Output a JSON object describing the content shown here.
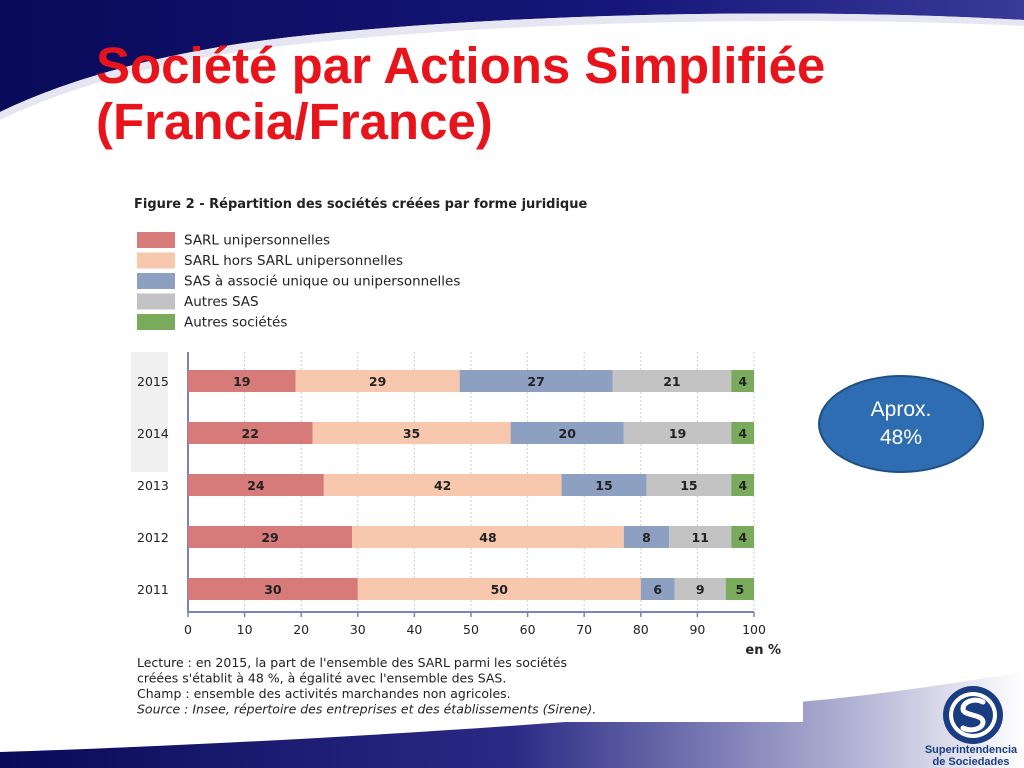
{
  "slide": {
    "title_line1": "Société par Actions Simplifiée",
    "title_line2": "(Francia/France)",
    "callout_line1": "Aprox.",
    "callout_line2": "48%",
    "logo_line1": "Superintendencia",
    "logo_line2": "de Sociedades",
    "colors": {
      "title": "#e8141b",
      "navy": "#0a0a5a",
      "callout": "#2e6db2"
    }
  },
  "chart_data": {
    "type": "bar",
    "orientation": "horizontal",
    "stacked": true,
    "title": "Figure 2 - Répartition des sociétés créées par forme juridique",
    "categories": [
      "2015",
      "2014",
      "2013",
      "2012",
      "2011"
    ],
    "series": [
      {
        "name": "SARL unipersonnelles",
        "color": "#d67a7a",
        "values": [
          19,
          22,
          24,
          29,
          30
        ]
      },
      {
        "name": "SARL hors SARL unipersonnelles",
        "color": "#f7c8ad",
        "values": [
          29,
          35,
          42,
          48,
          50
        ]
      },
      {
        "name": "SAS à associé unique ou unipersonnelles",
        "color": "#8ea0c1",
        "values": [
          27,
          20,
          15,
          8,
          6
        ]
      },
      {
        "name": "Autres SAS",
        "color": "#c3c3c3",
        "values": [
          21,
          19,
          15,
          11,
          9
        ]
      },
      {
        "name": "Autres sociétés",
        "color": "#7aaa5c",
        "values": [
          4,
          4,
          4,
          4,
          5
        ]
      }
    ],
    "xlim": [
      0,
      100
    ],
    "xticks": [
      0,
      10,
      20,
      30,
      40,
      50,
      60,
      70,
      80,
      90,
      100
    ],
    "xunit": "en %",
    "grid": true,
    "legend_position": "top",
    "notes": [
      "Lecture : en 2015, la part de l'ensemble des SARL parmi les sociétés",
      "créées s'établit à 48 %, à égalité avec l'ensemble des SAS.",
      "Champ : ensemble des activités marchandes non agricoles.",
      "Source : Insee, répertoire des entreprises et des établissements (Sirene)."
    ]
  }
}
